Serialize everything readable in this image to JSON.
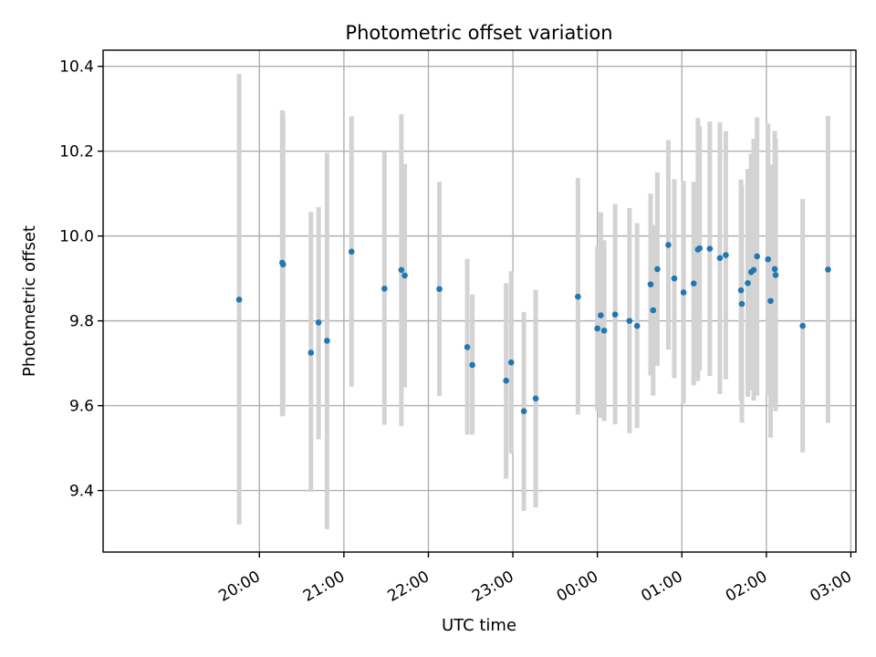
{
  "chart_data": {
    "type": "scatter",
    "title": "Photometric offset variation",
    "xlabel": "UTC time",
    "ylabel": "Photometric offset",
    "x_unit": "hours since 00:00 UTC",
    "xlim": [
      -5.85,
      3.06
    ],
    "ylim": [
      9.255,
      10.438
    ],
    "xticks": [
      {
        "value": -4,
        "label": "20:00"
      },
      {
        "value": -3,
        "label": "21:00"
      },
      {
        "value": -2,
        "label": "22:00"
      },
      {
        "value": -1,
        "label": "23:00"
      },
      {
        "value": 0,
        "label": "00:00"
      },
      {
        "value": 1,
        "label": "01:00"
      },
      {
        "value": 2,
        "label": "02:00"
      },
      {
        "value": 3,
        "label": "03:00"
      }
    ],
    "yticks": [
      {
        "value": 9.4,
        "label": "9.4"
      },
      {
        "value": 9.6,
        "label": "9.6"
      },
      {
        "value": 9.8,
        "label": "9.8"
      },
      {
        "value": 10.0,
        "label": "10.0"
      },
      {
        "value": 10.2,
        "label": "10.2"
      },
      {
        "value": 10.4,
        "label": "10.4"
      }
    ],
    "grid": true,
    "point_color": "#1f77b4",
    "errorbar_color": "#d3d3d3",
    "points": [
      {
        "t": -4.24,
        "y": 9.85,
        "lo": 9.32,
        "hi": 10.382
      },
      {
        "t": -3.73,
        "y": 9.937,
        "lo": 9.575,
        "hi": 10.296
      },
      {
        "t": -3.72,
        "y": 9.933,
        "lo": 9.578,
        "hi": 10.29
      },
      {
        "t": -3.39,
        "y": 9.725,
        "lo": 9.397,
        "hi": 10.057
      },
      {
        "t": -3.3,
        "y": 9.796,
        "lo": 9.521,
        "hi": 10.068
      },
      {
        "t": -3.2,
        "y": 9.753,
        "lo": 9.309,
        "hi": 10.196
      },
      {
        "t": -2.91,
        "y": 9.963,
        "lo": 9.645,
        "hi": 10.282
      },
      {
        "t": -2.52,
        "y": 9.876,
        "lo": 9.555,
        "hi": 10.198
      },
      {
        "t": -2.32,
        "y": 9.92,
        "lo": 9.552,
        "hi": 10.287
      },
      {
        "t": -2.28,
        "y": 9.907,
        "lo": 9.643,
        "hi": 10.17
      },
      {
        "t": -1.87,
        "y": 9.875,
        "lo": 9.623,
        "hi": 10.128
      },
      {
        "t": -1.54,
        "y": 9.738,
        "lo": 9.532,
        "hi": 9.946
      },
      {
        "t": -1.48,
        "y": 9.696,
        "lo": 9.532,
        "hi": 9.862
      },
      {
        "t": -1.08,
        "y": 9.659,
        "lo": 9.428,
        "hi": 9.889
      },
      {
        "t": -1.02,
        "y": 9.702,
        "lo": 9.487,
        "hi": 9.917
      },
      {
        "t": -0.87,
        "y": 9.587,
        "lo": 9.352,
        "hi": 9.821
      },
      {
        "t": -0.73,
        "y": 9.617,
        "lo": 9.36,
        "hi": 9.873
      },
      {
        "t": -0.23,
        "y": 9.857,
        "lo": 9.579,
        "hi": 10.137
      },
      {
        "t": 0.0,
        "y": 9.782,
        "lo": 9.588,
        "hi": 9.976
      },
      {
        "t": 0.04,
        "y": 9.813,
        "lo": 9.571,
        "hi": 10.056
      },
      {
        "t": 0.08,
        "y": 9.777,
        "lo": 9.564,
        "hi": 9.99
      },
      {
        "t": 0.21,
        "y": 9.815,
        "lo": 9.556,
        "hi": 10.075
      },
      {
        "t": 0.38,
        "y": 9.8,
        "lo": 9.535,
        "hi": 10.066
      },
      {
        "t": 0.47,
        "y": 9.788,
        "lo": 9.547,
        "hi": 10.03
      },
      {
        "t": 0.63,
        "y": 9.886,
        "lo": 9.671,
        "hi": 10.1
      },
      {
        "t": 0.66,
        "y": 9.825,
        "lo": 9.624,
        "hi": 10.026
      },
      {
        "t": 0.71,
        "y": 9.922,
        "lo": 9.694,
        "hi": 10.15
      },
      {
        "t": 0.84,
        "y": 9.979,
        "lo": 9.732,
        "hi": 10.226
      },
      {
        "t": 0.91,
        "y": 9.9,
        "lo": 9.665,
        "hi": 10.134
      },
      {
        "t": 1.02,
        "y": 9.867,
        "lo": 9.605,
        "hi": 10.13
      },
      {
        "t": 1.14,
        "y": 9.888,
        "lo": 9.648,
        "hi": 10.128
      },
      {
        "t": 1.19,
        "y": 9.968,
        "lo": 9.658,
        "hi": 10.278
      },
      {
        "t": 1.21,
        "y": 9.971,
        "lo": 9.683,
        "hi": 10.259
      },
      {
        "t": 1.33,
        "y": 9.97,
        "lo": 9.67,
        "hi": 10.27
      },
      {
        "t": 1.45,
        "y": 9.948,
        "lo": 9.627,
        "hi": 10.268
      },
      {
        "t": 1.52,
        "y": 9.955,
        "lo": 9.662,
        "hi": 10.247
      },
      {
        "t": 1.7,
        "y": 9.872,
        "lo": 9.612,
        "hi": 10.133
      },
      {
        "t": 1.71,
        "y": 9.84,
        "lo": 9.56,
        "hi": 10.12
      },
      {
        "t": 1.78,
        "y": 9.889,
        "lo": 9.621,
        "hi": 10.158
      },
      {
        "t": 1.82,
        "y": 9.915,
        "lo": 9.636,
        "hi": 10.194
      },
      {
        "t": 1.85,
        "y": 9.92,
        "lo": 9.612,
        "hi": 10.229
      },
      {
        "t": 1.89,
        "y": 9.952,
        "lo": 9.624,
        "hi": 10.28
      },
      {
        "t": 2.02,
        "y": 9.945,
        "lo": 9.625,
        "hi": 10.265
      },
      {
        "t": 2.05,
        "y": 9.847,
        "lo": 9.525,
        "hi": 10.169
      },
      {
        "t": 2.1,
        "y": 9.922,
        "lo": 9.596,
        "hi": 10.248
      },
      {
        "t": 2.11,
        "y": 9.908,
        "lo": 9.587,
        "hi": 10.229
      },
      {
        "t": 2.43,
        "y": 9.788,
        "lo": 9.49,
        "hi": 10.087
      },
      {
        "t": 2.73,
        "y": 9.921,
        "lo": 9.559,
        "hi": 10.283
      }
    ]
  }
}
